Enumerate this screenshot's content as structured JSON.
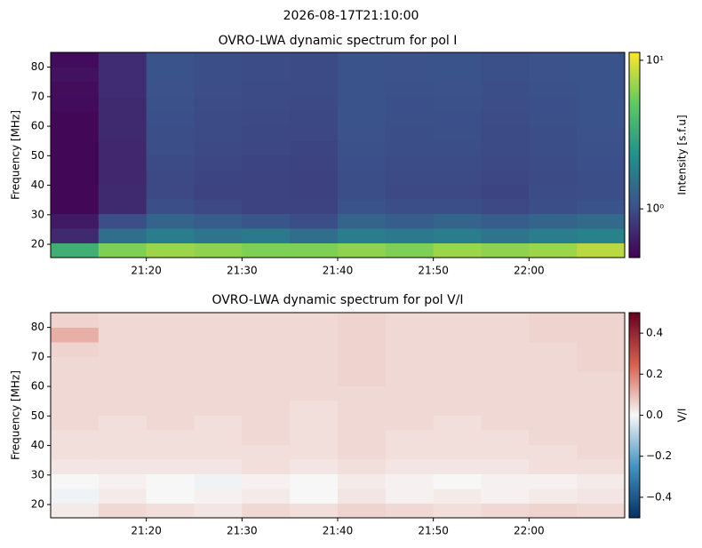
{
  "suptitle": "2026-08-17T21:10:00",
  "chart_data": [
    {
      "type": "heatmap",
      "title": "OVRO-LWA dynamic spectrum for pol I",
      "ylabel": "Frequency [MHz]",
      "xlim": [
        1270,
        1330
      ],
      "xticks": [
        {
          "value": 1280,
          "label": "21:20"
        },
        {
          "value": 1290,
          "label": "21:30"
        },
        {
          "value": 1300,
          "label": "21:40"
        },
        {
          "value": 1310,
          "label": "21:50"
        },
        {
          "value": 1320,
          "label": "22:00"
        }
      ],
      "ylim": [
        15.5,
        85
      ],
      "yticks": [
        20,
        30,
        40,
        50,
        60,
        70,
        80
      ],
      "colormap": "viridis",
      "cscale": "log",
      "clim": [
        0.47,
        11.3
      ],
      "cticks": [
        {
          "value": 1,
          "label": "10⁰"
        },
        {
          "value": 10,
          "label": "10¹"
        }
      ],
      "clabel": "Intensity [s.f.u]",
      "z": [
        [
          3.5,
          6,
          7,
          6.5,
          6,
          6,
          6.5,
          6,
          7,
          6.5,
          7,
          8
        ],
        [
          0.7,
          1.5,
          1.8,
          1.6,
          1.7,
          1.5,
          1.8,
          1.7,
          1.8,
          1.6,
          1.8,
          1.9
        ],
        [
          0.6,
          1.0,
          1.3,
          1.2,
          1.1,
          1.0,
          1.3,
          1.2,
          1.3,
          1.2,
          1.3,
          1.4
        ],
        [
          0.5,
          0.7,
          1.0,
          0.95,
          0.9,
          0.9,
          1.05,
          1.0,
          1.0,
          0.95,
          1.0,
          1.05
        ],
        [
          0.5,
          0.7,
          0.95,
          0.9,
          0.9,
          0.88,
          1.0,
          0.95,
          0.95,
          0.92,
          0.98,
          1.0
        ],
        [
          0.5,
          0.68,
          0.95,
          0.92,
          0.9,
          0.88,
          1.0,
          0.96,
          0.97,
          0.93,
          0.97,
          1.0
        ],
        [
          0.5,
          0.68,
          0.97,
          0.93,
          0.92,
          0.9,
          1.02,
          0.98,
          0.98,
          0.95,
          0.98,
          1.02
        ],
        [
          0.5,
          0.68,
          1.0,
          0.95,
          0.93,
          0.92,
          1.03,
          1.0,
          1.0,
          0.96,
          1.0,
          1.03
        ],
        [
          0.5,
          0.7,
          1.0,
          0.96,
          0.94,
          0.93,
          1.04,
          1.0,
          1.01,
          0.97,
          1.0,
          1.04
        ],
        [
          0.5,
          0.7,
          1.02,
          0.97,
          0.95,
          0.94,
          1.05,
          1.01,
          1.02,
          0.98,
          1.01,
          1.05
        ],
        [
          0.52,
          0.7,
          1.03,
          0.98,
          0.96,
          0.95,
          1.05,
          1.02,
          1.03,
          0.99,
          1.02,
          1.05
        ],
        [
          0.53,
          0.72,
          1.04,
          0.99,
          0.97,
          0.96,
          1.06,
          1.03,
          1.04,
          1.0,
          1.03,
          1.06
        ],
        [
          0.55,
          0.72,
          1.05,
          1.0,
          0.98,
          0.97,
          1.07,
          1.04,
          1.05,
          1.01,
          1.04,
          1.07
        ],
        [
          0.52,
          0.72,
          1.05,
          1.0,
          0.98,
          0.97,
          1.07,
          1.04,
          1.05,
          1.01,
          1.04,
          1.07
        ]
      ]
    },
    {
      "type": "heatmap",
      "title": "OVRO-LWA dynamic spectrum for pol V/I",
      "ylabel": "Frequency [MHz]",
      "xlim": [
        1270,
        1330
      ],
      "xticks": [
        {
          "value": 1280,
          "label": "21:20"
        },
        {
          "value": 1290,
          "label": "21:30"
        },
        {
          "value": 1300,
          "label": "21:40"
        },
        {
          "value": 1310,
          "label": "21:50"
        },
        {
          "value": 1320,
          "label": "22:00"
        }
      ],
      "ylim": [
        15.5,
        85
      ],
      "yticks": [
        20,
        30,
        40,
        50,
        60,
        70,
        80
      ],
      "colormap": "RdBu_r",
      "cscale": "linear",
      "clim": [
        -0.5,
        0.5
      ],
      "cticks": [
        {
          "value": -0.4,
          "label": "−0.4"
        },
        {
          "value": -0.2,
          "label": "−0.2"
        },
        {
          "value": 0,
          "label": "0.0"
        },
        0.2,
        0.4
      ],
      "clabel": "V/I",
      "z": [
        [
          0.02,
          0.05,
          0.04,
          0.03,
          0.05,
          0.04,
          0.06,
          0.05,
          0.04,
          0.05,
          0.06,
          0.05
        ],
        [
          -0.01,
          0.02,
          0.0,
          0.01,
          0.02,
          0.0,
          0.03,
          0.01,
          0.02,
          0.01,
          0.02,
          0.03
        ],
        [
          0.0,
          0.01,
          0.0,
          -0.01,
          0.01,
          0.0,
          0.02,
          0.01,
          0.0,
          0.01,
          0.01,
          0.02
        ],
        [
          0.03,
          0.03,
          0.03,
          0.03,
          0.04,
          0.03,
          0.04,
          0.03,
          0.03,
          0.03,
          0.04,
          0.04
        ],
        [
          0.04,
          0.04,
          0.04,
          0.04,
          0.04,
          0.04,
          0.05,
          0.04,
          0.04,
          0.04,
          0.04,
          0.05
        ],
        [
          0.04,
          0.04,
          0.04,
          0.04,
          0.05,
          0.04,
          0.05,
          0.04,
          0.04,
          0.04,
          0.05,
          0.05
        ],
        [
          0.05,
          0.04,
          0.05,
          0.04,
          0.05,
          0.04,
          0.05,
          0.05,
          0.04,
          0.05,
          0.05,
          0.05
        ],
        [
          0.05,
          0.05,
          0.05,
          0.05,
          0.05,
          0.04,
          0.05,
          0.05,
          0.05,
          0.05,
          0.05,
          0.05
        ],
        [
          0.05,
          0.05,
          0.05,
          0.05,
          0.05,
          0.05,
          0.05,
          0.05,
          0.05,
          0.05,
          0.05,
          0.05
        ],
        [
          0.05,
          0.05,
          0.05,
          0.05,
          0.05,
          0.05,
          0.06,
          0.05,
          0.05,
          0.05,
          0.05,
          0.05
        ],
        [
          0.05,
          0.05,
          0.05,
          0.05,
          0.05,
          0.05,
          0.06,
          0.05,
          0.05,
          0.05,
          0.05,
          0.06
        ],
        [
          0.06,
          0.05,
          0.05,
          0.05,
          0.05,
          0.05,
          0.06,
          0.05,
          0.05,
          0.05,
          0.05,
          0.06
        ],
        [
          0.12,
          0.05,
          0.05,
          0.05,
          0.05,
          0.05,
          0.06,
          0.05,
          0.05,
          0.05,
          0.06,
          0.06
        ],
        [
          0.06,
          0.05,
          0.05,
          0.05,
          0.05,
          0.05,
          0.06,
          0.05,
          0.05,
          0.05,
          0.06,
          0.06
        ]
      ]
    }
  ]
}
